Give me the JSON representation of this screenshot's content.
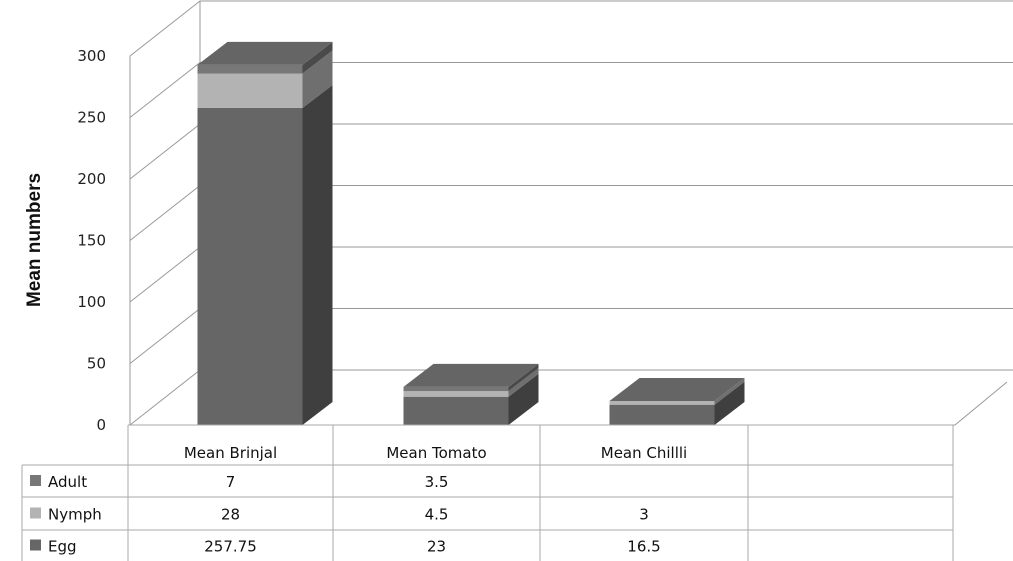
{
  "chart_data": {
    "type": "bar",
    "stacked": true,
    "three_d": true,
    "title": "",
    "xlabel": "",
    "ylabel": "Mean numbers",
    "ylim": [
      0,
      300
    ],
    "yticks": [
      0,
      50,
      100,
      150,
      200,
      250,
      300
    ],
    "categories": [
      "Mean Brinjal",
      "Mean Tomato",
      "Mean Chillli"
    ],
    "series": [
      {
        "name": "Egg",
        "values": [
          257.75,
          23,
          16.5
        ],
        "labels": [
          "257.75",
          "23",
          "16.5"
        ],
        "color": "#666666"
      },
      {
        "name": "Nymph",
        "values": [
          28,
          4.5,
          3
        ],
        "labels": [
          "28",
          "4.5",
          "3"
        ],
        "color": "#b3b3b3"
      },
      {
        "name": "Adult",
        "values": [
          7,
          3.5,
          0
        ],
        "labels": [
          "7",
          "3.5",
          ""
        ],
        "color": "#777777"
      }
    ],
    "table_row_order": [
      "Adult",
      "Nymph",
      "Egg"
    ],
    "legend": "data-table",
    "grid": true
  }
}
